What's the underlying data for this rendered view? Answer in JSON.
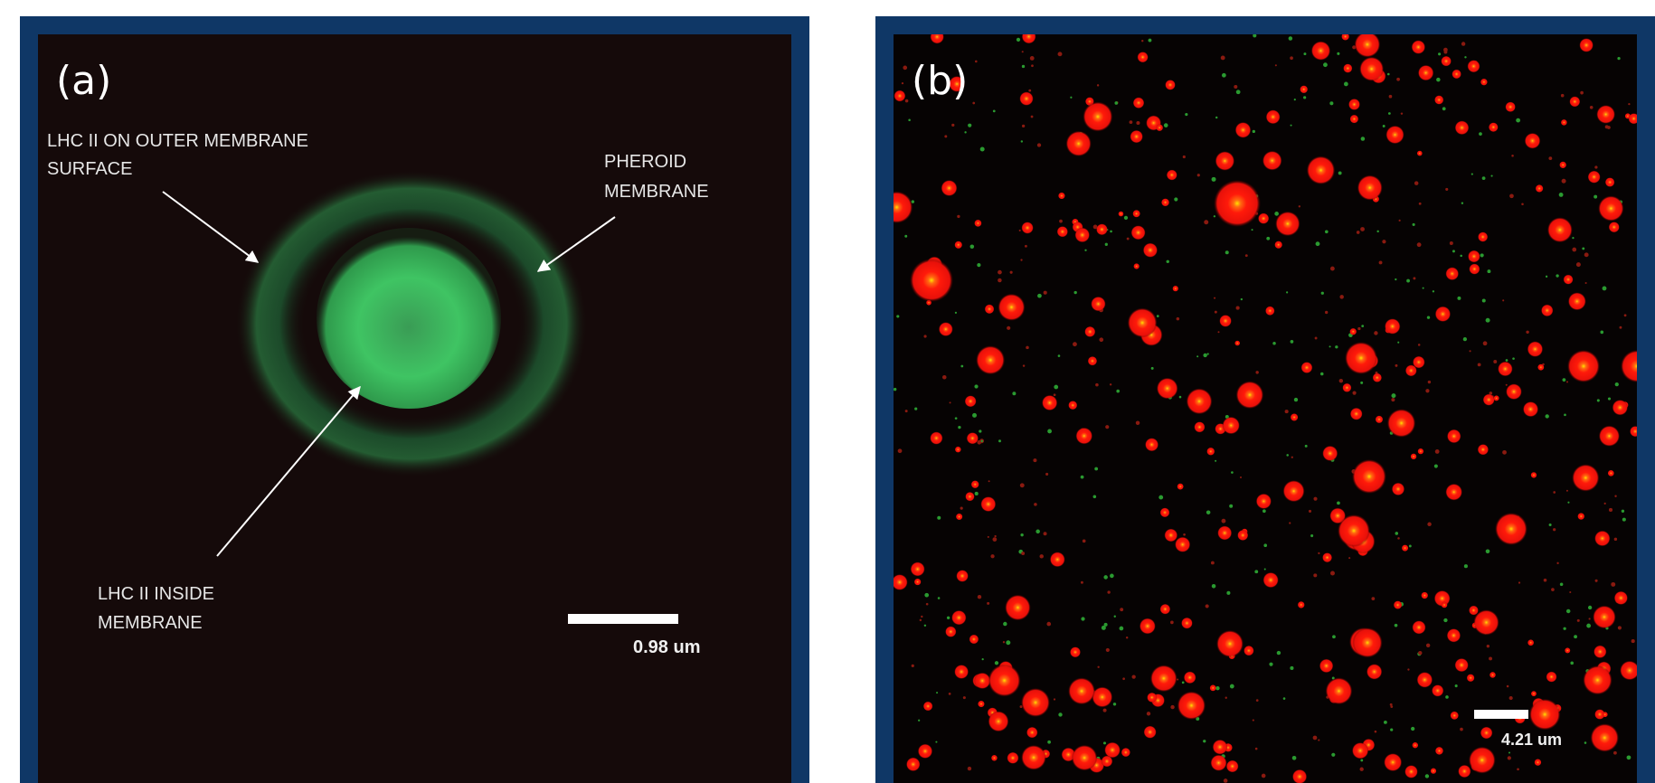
{
  "panels": [
    {
      "label": "(a)",
      "annotations": [
        {
          "lines": [
            "LHC II ON OUTER MEMBRANE",
            "SURFACE"
          ]
        },
        {
          "lines": [
            "PHEROID",
            "MEMBRANE"
          ]
        },
        {
          "lines": [
            "LHC II INSIDE",
            "MEMBRANE"
          ]
        }
      ],
      "scale_bar": "0.98 um"
    },
    {
      "label": "(b)",
      "scale_bar": "4.21 um"
    }
  ]
}
